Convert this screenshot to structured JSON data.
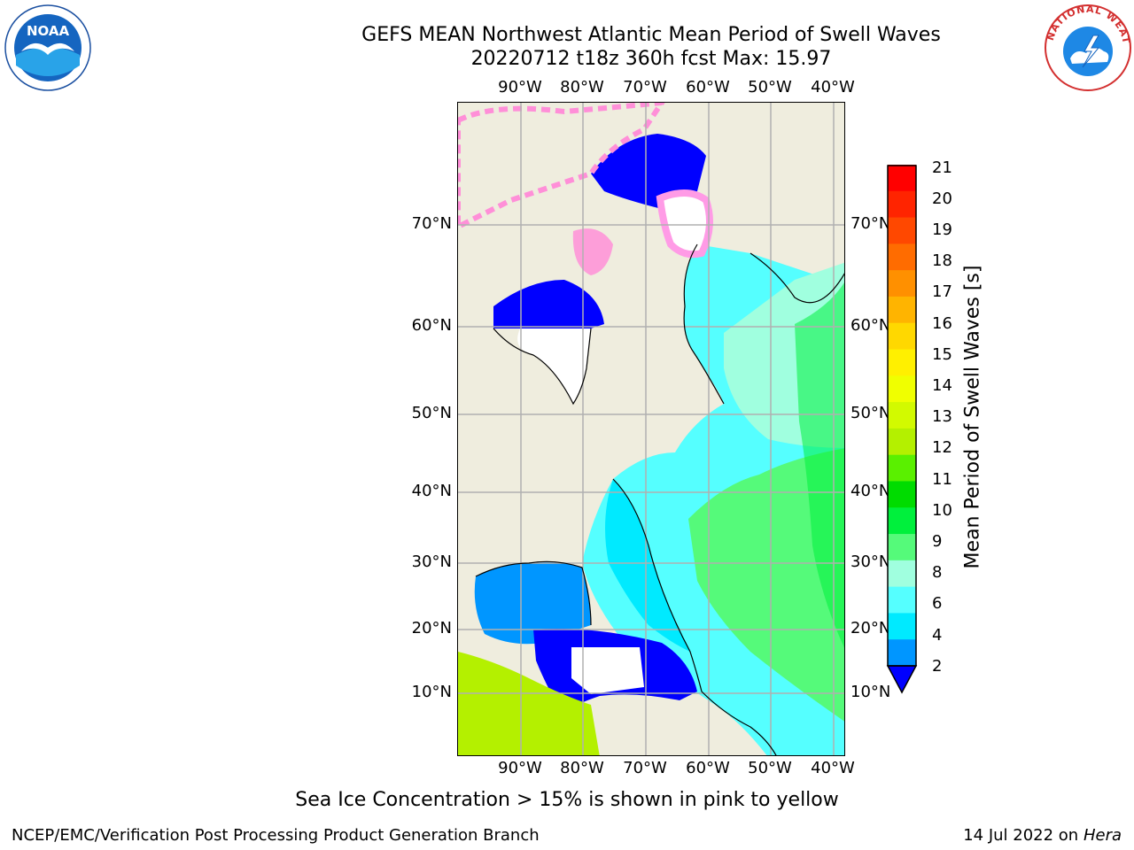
{
  "header": {
    "title_line1": "GEFS MEAN Northwest Atlantic Mean Period of Swell Waves",
    "title_line2": "20220712 t18z 360h fcst   Max: 15.97"
  },
  "logos": {
    "left": "noaa-logo",
    "right": "national-weather-service-logo",
    "left_text": "NOAA",
    "right_ring_text": "NATIONAL WEATHER SERVICE"
  },
  "map": {
    "lon_labels": [
      "90°W",
      "80°W",
      "70°W",
      "60°W",
      "50°W",
      "40°W"
    ],
    "lat_labels": [
      "70°N",
      "60°N",
      "50°N",
      "40°N",
      "30°N",
      "20°N",
      "10°N"
    ],
    "land_color": "#efedde",
    "no_data_color": "#ffffff",
    "grid_color": "#b0b0b0"
  },
  "colorbar": {
    "label": "Mean Period of Swell Waves [s]",
    "ticks": [
      "21",
      "20",
      "19",
      "18",
      "17",
      "16",
      "15",
      "14",
      "13",
      "12",
      "11",
      "10",
      "9",
      "8",
      "6",
      "4",
      "2"
    ],
    "colors_top_to_bottom": [
      "#ff0000",
      "#ff2400",
      "#ff4800",
      "#ff6c00",
      "#ff9000",
      "#ffb400",
      "#ffd800",
      "#fff000",
      "#f0ff00",
      "#d2fa00",
      "#b4f000",
      "#5af000",
      "#00dc00",
      "#00f03c",
      "#55fa7a",
      "#a0ffdf",
      "#55ffff",
      "#00eaff",
      "#0096ff",
      "#0000ff"
    ]
  },
  "footer": {
    "note": "Sea Ice Concentration > 15% is shown in pink to yellow",
    "credit": "NCEP/EMC/Verification Post Processing Product Generation Branch",
    "date": "14 Jul 2022 on",
    "machine": "Hera"
  }
}
